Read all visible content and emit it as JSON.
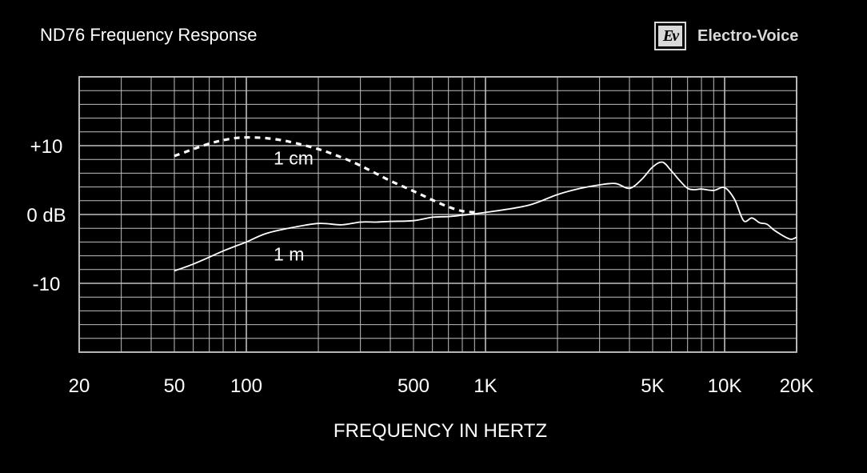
{
  "header": {
    "title": "ND76 Frequency Response",
    "brand_logo_text": "Ev",
    "brand_name": "Electro-Voice"
  },
  "colors": {
    "background": "#000000",
    "grid": "#bfbfbf",
    "curve": "#ffffff",
    "text": "#ffffff"
  },
  "chart_data": {
    "type": "line",
    "title": "ND76 Frequency Response",
    "xlabel": "FREQUENCY IN HERTZ",
    "ylabel": "",
    "x_scale": "log",
    "xlim": [
      20,
      20000
    ],
    "ylim": [
      -20,
      20
    ],
    "grid": true,
    "x_ticks": [
      {
        "value": 20,
        "label": "20"
      },
      {
        "value": 50,
        "label": "50"
      },
      {
        "value": 100,
        "label": "100"
      },
      {
        "value": 500,
        "label": "500"
      },
      {
        "value": 1000,
        "label": "1K"
      },
      {
        "value": 5000,
        "label": "5K"
      },
      {
        "value": 10000,
        "label": "10K"
      },
      {
        "value": 20000,
        "label": "20K"
      }
    ],
    "y_ticks": [
      {
        "value": 10,
        "label": "+10"
      },
      {
        "value": 0,
        "label": "0 dB"
      },
      {
        "value": -10,
        "label": "-10"
      }
    ],
    "series": [
      {
        "name": "1 cm",
        "style": "dashed",
        "x": [
          50,
          60,
          70,
          80,
          90,
          100,
          120,
          150,
          200,
          250,
          300,
          400,
          500,
          600,
          700,
          800,
          900
        ],
        "y": [
          8.5,
          9.5,
          10.3,
          10.8,
          11.1,
          11.2,
          11.1,
          10.6,
          9.5,
          8.3,
          7.1,
          4.9,
          3.4,
          2.1,
          1.1,
          0.5,
          0.3
        ]
      },
      {
        "name": "1 m",
        "style": "solid",
        "x": [
          50,
          60,
          70,
          80,
          90,
          100,
          120,
          150,
          200,
          250,
          300,
          350,
          400,
          500,
          600,
          700,
          800,
          1000,
          1500,
          2000,
          2500,
          3000,
          3500,
          4000,
          4500,
          5000,
          5500,
          6000,
          6500,
          7000,
          7500,
          8000,
          9000,
          10000,
          11000,
          12000,
          13000,
          14000,
          15000,
          16000,
          17000,
          18000,
          19000,
          20000
        ],
        "y": [
          -8.2,
          -7.2,
          -6.2,
          -5.3,
          -4.6,
          -4.0,
          -2.8,
          -2.0,
          -1.3,
          -1.5,
          -1.1,
          -1.1,
          -1.0,
          -0.9,
          -0.4,
          -0.3,
          -0.1,
          0.3,
          1.3,
          2.9,
          3.8,
          4.3,
          4.5,
          3.8,
          5.1,
          6.9,
          7.6,
          6.3,
          4.9,
          3.8,
          3.6,
          3.7,
          3.5,
          3.9,
          2.2,
          -0.9,
          -0.5,
          -1.2,
          -1.4,
          -2.2,
          -2.8,
          -3.3,
          -3.6,
          -3.3
        ]
      }
    ],
    "annotations": [
      {
        "text": "1 cm",
        "x": 130,
        "y": 8.0
      },
      {
        "text": "1 m",
        "x": 130,
        "y": -6.0
      }
    ]
  }
}
